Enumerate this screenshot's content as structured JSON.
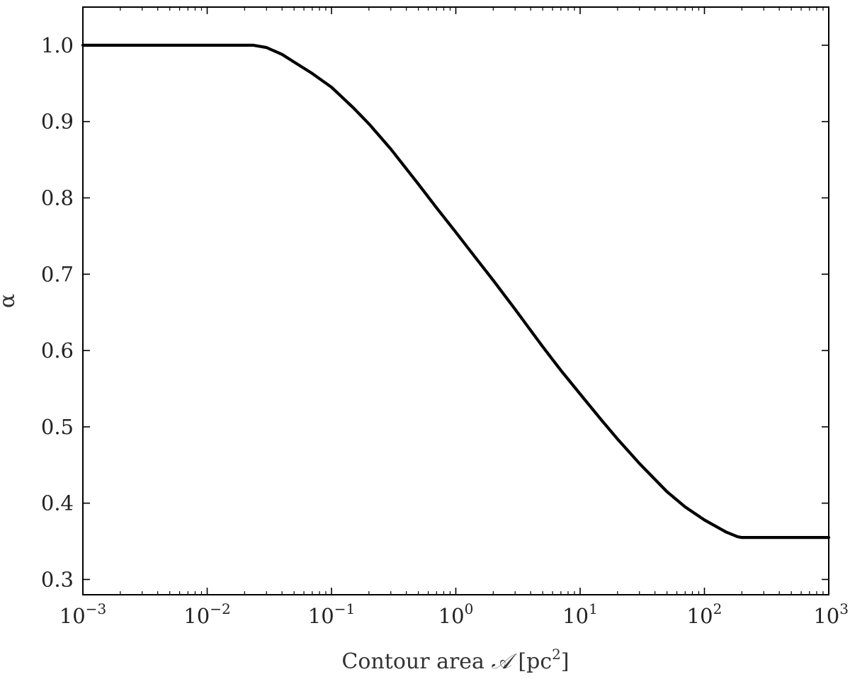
{
  "chart_data": {
    "type": "line",
    "title": "",
    "xlabel_text": "Contour area ",
    "xlabel_symbol": "𝒜",
    "xlabel_unit_open": " [pc",
    "xlabel_unit_exp": "2",
    "xlabel_unit_close": "]",
    "ylabel": "α",
    "xscale": "log",
    "xlim": [
      0.001,
      1000
    ],
    "ylim": [
      0.28,
      1.05
    ],
    "grid": false,
    "legend": "none",
    "x_ticks": [
      {
        "base": "10",
        "exp": "−3",
        "value": 0.001
      },
      {
        "base": "10",
        "exp": "−2",
        "value": 0.01
      },
      {
        "base": "10",
        "exp": "−1",
        "value": 0.1
      },
      {
        "base": "10",
        "exp": "0",
        "value": 1
      },
      {
        "base": "10",
        "exp": "1",
        "value": 10
      },
      {
        "base": "10",
        "exp": "2",
        "value": 100
      },
      {
        "base": "10",
        "exp": "3",
        "value": 1000
      }
    ],
    "y_ticks": [
      {
        "label": "0.3",
        "value": 0.3
      },
      {
        "label": "0.4",
        "value": 0.4
      },
      {
        "label": "0.5",
        "value": 0.5
      },
      {
        "label": "0.6",
        "value": 0.6
      },
      {
        "label": "0.7",
        "value": 0.7
      },
      {
        "label": "0.8",
        "value": 0.8
      },
      {
        "label": "0.9",
        "value": 0.9
      },
      {
        "label": "1.0",
        "value": 1.0
      }
    ],
    "series": [
      {
        "color": "#000000",
        "x": [
          0.001,
          0.005,
          0.01,
          0.02,
          0.0236,
          0.03,
          0.04,
          0.05,
          0.07,
          0.1,
          0.15,
          0.2,
          0.3,
          0.5,
          0.7,
          1.0,
          1.5,
          2,
          3,
          5,
          7,
          10,
          15,
          20,
          30,
          50,
          70,
          100,
          150,
          185,
          200,
          300,
          500,
          1000
        ],
        "y": [
          1.0,
          1.0,
          1.0,
          1.0,
          1.0,
          0.997,
          0.988,
          0.978,
          0.963,
          0.945,
          0.918,
          0.897,
          0.864,
          0.818,
          0.787,
          0.755,
          0.718,
          0.692,
          0.654,
          0.605,
          0.574,
          0.543,
          0.508,
          0.484,
          0.452,
          0.415,
          0.395,
          0.378,
          0.362,
          0.356,
          0.355,
          0.355,
          0.355,
          0.355
        ]
      }
    ]
  }
}
